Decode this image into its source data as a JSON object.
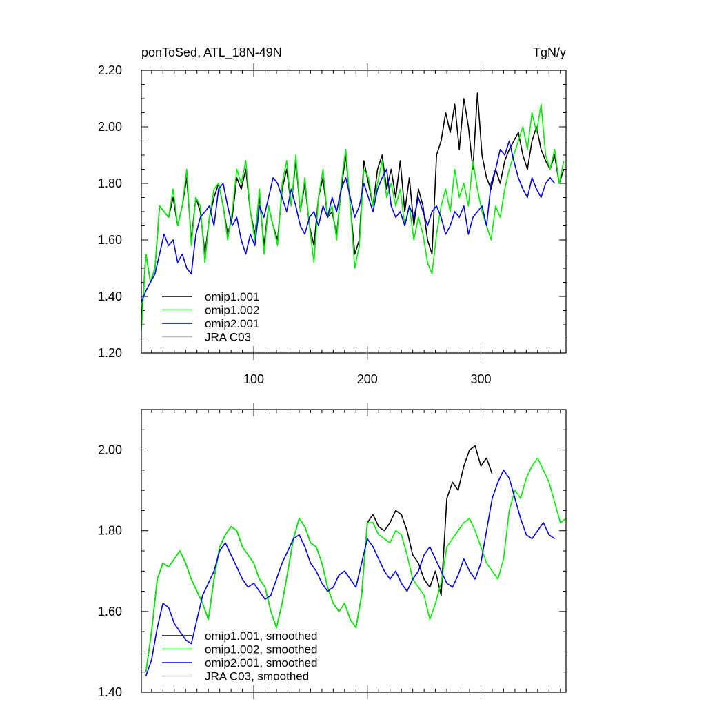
{
  "chart_data": [
    {
      "type": "line",
      "title": "ponToSed, ATL_18N-49N",
      "units": "TgN/y",
      "xlabel": "",
      "ylabel": "",
      "xlim": [
        1,
        375
      ],
      "ylim": [
        1.2,
        2.2
      ],
      "xticks": [
        100,
        200,
        300
      ],
      "yticks": [
        1.2,
        1.4,
        1.6,
        1.8,
        2.0,
        2.2
      ],
      "x_tick_labels": [
        "100",
        "200",
        "300"
      ],
      "y_tick_labels": [
        "1.20",
        "1.40",
        "1.60",
        "1.80",
        "2.00",
        "2.20"
      ],
      "legend_position": "bottom-left",
      "series": [
        {
          "name": "omip1.001",
          "color": "#000000",
          "x": [
            1,
            5,
            9,
            13,
            17,
            21,
            25,
            29,
            33,
            37,
            41,
            45,
            49,
            53,
            57,
            61,
            65,
            69,
            73,
            77,
            81,
            85,
            89,
            93,
            97,
            101,
            105,
            109,
            113,
            117,
            121,
            125,
            129,
            133,
            137,
            141,
            145,
            149,
            153,
            157,
            161,
            165,
            169,
            173,
            177,
            181,
            185,
            189,
            193,
            197,
            201,
            205,
            209,
            213,
            217,
            221,
            225,
            229,
            233,
            237,
            241,
            245,
            249,
            253,
            257,
            261,
            265,
            269,
            273,
            277,
            281,
            285,
            289,
            293,
            297,
            301,
            305,
            309,
            313,
            317,
            321,
            325,
            329,
            333,
            337,
            341,
            345,
            349,
            353,
            357,
            361,
            365,
            369,
            373
          ],
          "values": [
            1.3,
            1.55,
            1.45,
            1.5,
            1.72,
            1.7,
            1.68,
            1.75,
            1.65,
            1.72,
            1.82,
            1.6,
            1.75,
            1.7,
            1.55,
            1.68,
            1.75,
            1.8,
            1.72,
            1.62,
            1.68,
            1.82,
            1.78,
            1.85,
            1.7,
            1.62,
            1.75,
            1.58,
            1.72,
            1.65,
            1.6,
            1.78,
            1.85,
            1.72,
            1.88,
            1.7,
            1.8,
            1.65,
            1.58,
            1.75,
            1.82,
            1.68,
            1.7,
            1.62,
            1.78,
            1.9,
            1.72,
            1.55,
            1.6,
            1.88,
            1.8,
            1.72,
            1.85,
            1.9,
            1.78,
            1.85,
            1.75,
            1.88,
            1.7,
            1.82,
            1.65,
            1.78,
            1.72,
            1.6,
            1.55,
            1.9,
            1.95,
            2.05,
            1.98,
            2.08,
            1.92,
            2.1,
            2.0,
            1.85,
            2.12,
            1.9,
            1.82,
            1.78,
            1.85,
            1.8,
            1.88,
            1.92,
            1.95,
            1.98,
            1.9,
            1.85,
            1.95,
            2.0,
            1.92,
            1.88,
            1.85,
            1.9,
            1.8,
            1.85
          ]
        },
        {
          "name": "omip1.002",
          "color": "#00ee00",
          "x": [
            1,
            5,
            9,
            13,
            17,
            21,
            25,
            29,
            33,
            37,
            41,
            45,
            49,
            53,
            57,
            61,
            65,
            69,
            73,
            77,
            81,
            85,
            89,
            93,
            97,
            101,
            105,
            109,
            113,
            117,
            121,
            125,
            129,
            133,
            137,
            141,
            145,
            149,
            153,
            157,
            161,
            165,
            169,
            173,
            177,
            181,
            185,
            189,
            193,
            197,
            201,
            205,
            209,
            213,
            217,
            221,
            225,
            229,
            233,
            237,
            241,
            245,
            249,
            253,
            257,
            261,
            265,
            269,
            273,
            277,
            281,
            285,
            289,
            293,
            297,
            301,
            305,
            309,
            313,
            317,
            321,
            325,
            329,
            333,
            337,
            341,
            345,
            349,
            353,
            357,
            361,
            365,
            369,
            373
          ],
          "values": [
            1.28,
            1.55,
            1.45,
            1.5,
            1.72,
            1.7,
            1.68,
            1.78,
            1.65,
            1.72,
            1.85,
            1.58,
            1.75,
            1.72,
            1.52,
            1.68,
            1.78,
            1.8,
            1.72,
            1.6,
            1.7,
            1.85,
            1.8,
            1.88,
            1.7,
            1.6,
            1.78,
            1.55,
            1.72,
            1.65,
            1.58,
            1.8,
            1.88,
            1.72,
            1.9,
            1.7,
            1.82,
            1.65,
            1.52,
            1.75,
            1.85,
            1.68,
            1.72,
            1.6,
            1.8,
            1.92,
            1.72,
            1.5,
            1.58,
            1.85,
            1.82,
            1.72,
            1.8,
            1.88,
            1.75,
            1.8,
            1.72,
            1.78,
            1.65,
            1.72,
            1.6,
            1.68,
            1.62,
            1.52,
            1.48,
            1.62,
            1.72,
            1.78,
            1.7,
            1.85,
            1.75,
            1.8,
            1.72,
            1.88,
            1.78,
            1.7,
            1.65,
            1.6,
            1.72,
            1.68,
            1.78,
            1.85,
            1.9,
            1.95,
            2.0,
            1.92,
            2.05,
            1.98,
            2.08,
            1.9,
            1.85,
            1.92,
            1.8,
            1.88
          ]
        },
        {
          "name": "omip2.001",
          "color": "#0000ee",
          "x": [
            1,
            5,
            9,
            13,
            17,
            21,
            25,
            29,
            33,
            37,
            41,
            45,
            49,
            53,
            57,
            61,
            65,
            69,
            73,
            77,
            81,
            85,
            89,
            93,
            97,
            101,
            105,
            109,
            113,
            117,
            121,
            125,
            129,
            133,
            137,
            141,
            145,
            149,
            153,
            157,
            161,
            165,
            169,
            173,
            177,
            181,
            185,
            189,
            193,
            197,
            201,
            205,
            209,
            213,
            217,
            221,
            225,
            229,
            233,
            237,
            241,
            245,
            249,
            253,
            257,
            261,
            265,
            269,
            273,
            277,
            281,
            285,
            289,
            293,
            297,
            301,
            305,
            309,
            313,
            317,
            321,
            325,
            329,
            333,
            337,
            341,
            345,
            349,
            353,
            357,
            361,
            365
          ],
          "values": [
            1.38,
            1.42,
            1.45,
            1.48,
            1.55,
            1.62,
            1.58,
            1.6,
            1.52,
            1.55,
            1.5,
            1.48,
            1.62,
            1.68,
            1.7,
            1.72,
            1.65,
            1.78,
            1.8,
            1.72,
            1.65,
            1.68,
            1.6,
            1.55,
            1.62,
            1.58,
            1.72,
            1.68,
            1.75,
            1.82,
            1.8,
            1.75,
            1.7,
            1.78,
            1.72,
            1.65,
            1.62,
            1.68,
            1.7,
            1.65,
            1.72,
            1.68,
            1.75,
            1.7,
            1.78,
            1.82,
            1.75,
            1.68,
            1.72,
            1.8,
            1.75,
            1.7,
            1.78,
            1.82,
            1.85,
            1.72,
            1.68,
            1.7,
            1.65,
            1.72,
            1.68,
            1.75,
            1.7,
            1.65,
            1.7,
            1.72,
            1.68,
            1.62,
            1.65,
            1.7,
            1.68,
            1.72,
            1.62,
            1.68,
            1.7,
            1.72,
            1.65,
            1.8,
            1.85,
            1.92,
            1.9,
            1.95,
            1.88,
            1.82,
            1.78,
            1.75,
            1.82,
            1.78,
            1.75,
            1.8,
            1.82,
            1.8
          ]
        },
        {
          "name": "JRA C03",
          "color": "#bbbbbb",
          "x": [],
          "values": []
        }
      ]
    },
    {
      "type": "line",
      "title": "",
      "xlabel": "",
      "ylabel": "",
      "xlim": [
        1,
        375
      ],
      "ylim": [
        1.4,
        2.1
      ],
      "xticks": [
        100,
        200,
        300
      ],
      "yticks": [
        1.4,
        1.6,
        1.8,
        2.0
      ],
      "x_tick_labels": [],
      "y_tick_labels": [
        "1.40",
        "1.60",
        "1.80",
        "2.00"
      ],
      "legend_position": "bottom-left",
      "series": [
        {
          "name": "omip1.001, smoothed",
          "color": "#000000",
          "x": [
            5,
            10,
            15,
            20,
            25,
            30,
            35,
            40,
            45,
            50,
            55,
            60,
            65,
            70,
            75,
            80,
            85,
            90,
            95,
            100,
            105,
            110,
            115,
            120,
            125,
            130,
            135,
            140,
            145,
            150,
            155,
            160,
            165,
            170,
            175,
            180,
            185,
            190,
            195,
            200,
            205,
            210,
            215,
            220,
            225,
            230,
            235,
            240,
            245,
            250,
            255,
            260,
            265,
            270,
            275,
            280,
            285,
            290,
            295,
            300,
            305,
            310
          ],
          "values": [
            1.45,
            1.55,
            1.68,
            1.72,
            1.71,
            1.73,
            1.75,
            1.72,
            1.68,
            1.65,
            1.62,
            1.58,
            1.68,
            1.76,
            1.79,
            1.81,
            1.8,
            1.76,
            1.74,
            1.72,
            1.68,
            1.66,
            1.6,
            1.56,
            1.62,
            1.7,
            1.78,
            1.83,
            1.81,
            1.77,
            1.76,
            1.72,
            1.66,
            1.62,
            1.6,
            1.62,
            1.58,
            1.56,
            1.64,
            1.82,
            1.84,
            1.81,
            1.8,
            1.82,
            1.85,
            1.84,
            1.8,
            1.74,
            1.72,
            1.68,
            1.66,
            1.7,
            1.64,
            1.88,
            1.92,
            1.9,
            1.96,
            2.0,
            2.01,
            1.96,
            1.98,
            1.94
          ]
        },
        {
          "name": "omip1.002, smoothed",
          "color": "#00ee00",
          "x": [
            5,
            10,
            15,
            20,
            25,
            30,
            35,
            40,
            45,
            50,
            55,
            60,
            65,
            70,
            75,
            80,
            85,
            90,
            95,
            100,
            105,
            110,
            115,
            120,
            125,
            130,
            135,
            140,
            145,
            150,
            155,
            160,
            165,
            170,
            175,
            180,
            185,
            190,
            195,
            200,
            205,
            210,
            215,
            220,
            225,
            230,
            235,
            240,
            245,
            250,
            255,
            260,
            265,
            270,
            275,
            280,
            285,
            290,
            295,
            300,
            305,
            310,
            315,
            320,
            325,
            330,
            335,
            340,
            345,
            350,
            355,
            360,
            365,
            370,
            375
          ],
          "values": [
            1.45,
            1.55,
            1.68,
            1.72,
            1.71,
            1.73,
            1.75,
            1.72,
            1.68,
            1.65,
            1.62,
            1.58,
            1.68,
            1.76,
            1.79,
            1.81,
            1.8,
            1.76,
            1.74,
            1.72,
            1.68,
            1.66,
            1.6,
            1.56,
            1.62,
            1.7,
            1.78,
            1.83,
            1.81,
            1.77,
            1.76,
            1.72,
            1.66,
            1.62,
            1.6,
            1.62,
            1.58,
            1.56,
            1.64,
            1.82,
            1.82,
            1.79,
            1.78,
            1.77,
            1.8,
            1.79,
            1.74,
            1.68,
            1.66,
            1.64,
            1.58,
            1.62,
            1.67,
            1.76,
            1.78,
            1.8,
            1.82,
            1.83,
            1.8,
            1.76,
            1.72,
            1.7,
            1.68,
            1.73,
            1.85,
            1.9,
            1.88,
            1.93,
            1.96,
            1.98,
            1.95,
            1.92,
            1.87,
            1.82,
            1.83
          ]
        },
        {
          "name": "omip2.001, smoothed",
          "color": "#0000ee",
          "x": [
            5,
            10,
            15,
            20,
            25,
            30,
            35,
            40,
            45,
            50,
            55,
            60,
            65,
            70,
            75,
            80,
            85,
            90,
            95,
            100,
            105,
            110,
            115,
            120,
            125,
            130,
            135,
            140,
            145,
            150,
            155,
            160,
            165,
            170,
            175,
            180,
            185,
            190,
            195,
            200,
            205,
            210,
            215,
            220,
            225,
            230,
            235,
            240,
            245,
            250,
            255,
            260,
            265,
            270,
            275,
            280,
            285,
            290,
            295,
            300,
            305,
            310,
            315,
            320,
            325,
            330,
            335,
            340,
            345,
            350,
            355,
            360,
            365
          ],
          "values": [
            1.44,
            1.48,
            1.56,
            1.62,
            1.61,
            1.57,
            1.55,
            1.53,
            1.52,
            1.58,
            1.64,
            1.67,
            1.7,
            1.75,
            1.77,
            1.74,
            1.71,
            1.68,
            1.66,
            1.67,
            1.65,
            1.63,
            1.64,
            1.68,
            1.72,
            1.75,
            1.78,
            1.79,
            1.76,
            1.72,
            1.7,
            1.67,
            1.65,
            1.66,
            1.69,
            1.7,
            1.68,
            1.66,
            1.72,
            1.78,
            1.76,
            1.73,
            1.7,
            1.68,
            1.7,
            1.67,
            1.65,
            1.68,
            1.7,
            1.74,
            1.76,
            1.73,
            1.7,
            1.67,
            1.66,
            1.69,
            1.73,
            1.7,
            1.68,
            1.72,
            1.8,
            1.88,
            1.92,
            1.95,
            1.93,
            1.88,
            1.83,
            1.79,
            1.78,
            1.8,
            1.82,
            1.79,
            1.78
          ]
        },
        {
          "name": "JRA C03, smoothed",
          "color": "#bbbbbb",
          "x": [],
          "values": []
        }
      ]
    }
  ]
}
